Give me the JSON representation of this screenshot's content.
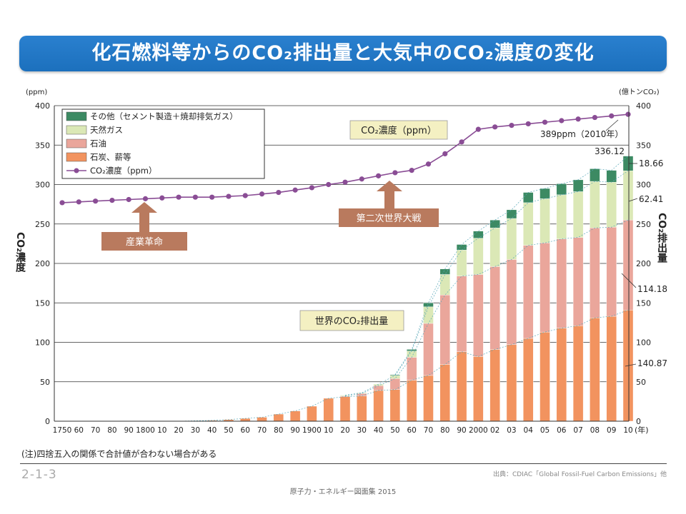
{
  "title": "化石燃料等からのCO₂排出量と大気中のCO₂濃度の変化",
  "note": "(注)四捨五入の関係で合計値が合わない場合がある",
  "code": "2-1-3",
  "source": "出典：CDIAC「Global Fossil-Fuel Carbon Emissions」他",
  "footer": "原子力・エネルギー図面集 2015",
  "colors": {
    "title_bar": "#1c70bd",
    "other": "#3c8a63",
    "gas": "#dbe8b6",
    "oil": "#eaa69b",
    "coal": "#f2935f",
    "co2_line": "#8a4d95",
    "callout_arrow": "#b97a5e",
    "label_box": "#f4f0c2"
  },
  "chart_data": {
    "type": "bar+line",
    "left_unit": "(ppm)",
    "right_unit": "(億トンCO₂)",
    "left_axis_label": "CO₂濃度",
    "right_axis_label": "CO₂排出量",
    "x_unit": "(年)",
    "ylim": [
      0,
      400
    ],
    "y_ticks": [
      "0",
      "50",
      "100",
      "150",
      "200",
      "250",
      "300",
      "350",
      "400"
    ],
    "grid": true,
    "legend_position": "top-left",
    "legend": [
      "その他（セメント製造＋焼却排気ガス）",
      "天然ガス",
      "石油",
      "石炭、薪等",
      "CO₂濃度（ppm）"
    ],
    "x_labels": [
      "1750",
      "60",
      "70",
      "80",
      "90",
      "1800",
      "10",
      "20",
      "30",
      "40",
      "50",
      "60",
      "70",
      "80",
      "90",
      "1900",
      "10",
      "20",
      "30",
      "40",
      "50",
      "60",
      "70",
      "80",
      "90",
      "2000",
      "02",
      "03",
      "04",
      "05",
      "06",
      "07",
      "08",
      "09",
      "10"
    ],
    "emissions": {
      "coal": [
        0,
        0,
        0,
        0,
        0,
        0,
        0,
        0,
        0.5,
        1,
        2,
        3.5,
        5,
        9,
        13,
        19,
        29,
        31,
        32,
        39,
        40,
        52,
        58,
        72,
        88,
        82,
        91,
        97,
        105,
        113,
        118,
        121,
        131,
        133,
        140.87
      ],
      "oil": [
        0,
        0,
        0,
        0,
        0,
        0,
        0,
        0,
        0,
        0,
        0,
        0,
        0,
        0,
        0,
        0,
        0,
        1,
        3,
        6,
        14,
        29,
        66,
        88,
        96,
        104,
        105,
        108,
        118,
        113,
        113,
        112,
        114,
        113,
        114.18
      ],
      "gas": [
        0,
        0,
        0,
        0,
        0,
        0,
        0,
        0,
        0,
        0,
        0,
        0,
        0,
        0,
        0,
        0,
        0,
        1,
        1,
        2,
        4,
        8,
        21,
        26,
        33,
        46,
        49,
        52,
        54,
        56,
        56,
        58,
        59,
        57,
        62.41
      ],
      "other": [
        0,
        0,
        0,
        0,
        0,
        0,
        0,
        0,
        0,
        0,
        0,
        0,
        0,
        0,
        0,
        0,
        0,
        0,
        0,
        0,
        1,
        2,
        5,
        7,
        7,
        9,
        10,
        11,
        13,
        13,
        14,
        15,
        16,
        15,
        18.66
      ]
    },
    "co2_ppm": [
      277,
      278,
      279,
      280,
      281,
      282,
      283,
      284,
      284,
      284,
      285,
      286,
      288,
      290,
      293,
      296,
      300,
      303,
      307,
      311,
      315,
      318,
      326,
      339,
      354,
      370,
      373,
      375,
      377,
      379,
      381,
      383,
      385,
      387,
      389
    ],
    "annotations": {
      "co2_label": "CO₂濃度（ppm）",
      "co2_end_label": "389ppm（2010年）",
      "emission_label": "世界のCO₂排出量",
      "industrial_revolution": "産業革命",
      "ww2": "第二次世界大戦",
      "total_2010": "336.12",
      "other_2010": "18.66",
      "gas_2010": "62.41",
      "oil_2010": "114.18",
      "coal_2010": "140.87"
    }
  }
}
